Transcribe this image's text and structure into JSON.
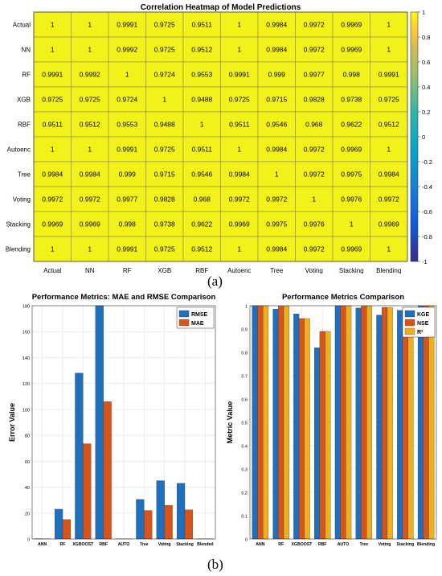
{
  "labels": {
    "a": "(a)",
    "b": "(b)"
  },
  "chart_data": [
    {
      "type": "heatmap",
      "title": "Correlation Heatmap of Model Predictions",
      "rows": [
        "Actual",
        "NN",
        "RF",
        "XGB",
        "RBF",
        "Autoenc",
        "Tree",
        "Voting",
        "Stacking",
        "Blending"
      ],
      "cols": [
        "Actual",
        "NN",
        "RF",
        "XGB",
        "RBF",
        "Autoenc",
        "Tree",
        "Voting",
        "Stacking",
        "Blending"
      ],
      "values": [
        [
          1,
          1,
          0.9991,
          0.9725,
          0.9511,
          1,
          0.9984,
          0.9972,
          0.9969,
          1
        ],
        [
          1,
          1,
          0.9992,
          0.9725,
          0.9512,
          1,
          0.9984,
          0.9972,
          0.9969,
          1
        ],
        [
          0.9991,
          0.9992,
          1,
          0.9724,
          0.9553,
          0.9991,
          0.999,
          0.9977,
          0.998,
          0.9991
        ],
        [
          0.9725,
          0.9725,
          0.9724,
          1,
          0.9488,
          0.9725,
          0.9715,
          0.9828,
          0.9738,
          0.9725
        ],
        [
          0.9511,
          0.9512,
          0.9553,
          0.9488,
          1,
          0.9511,
          0.9546,
          0.968,
          0.9622,
          0.9512
        ],
        [
          1,
          1,
          0.9991,
          0.9725,
          0.9511,
          1,
          0.9984,
          0.9972,
          0.9969,
          1
        ],
        [
          0.9984,
          0.9984,
          0.999,
          0.9715,
          0.9546,
          0.9984,
          1,
          0.9972,
          0.9975,
          0.9984
        ],
        [
          0.9972,
          0.9972,
          0.9977,
          0.9828,
          0.968,
          0.9972,
          0.9972,
          1,
          0.9976,
          0.9972
        ],
        [
          0.9969,
          0.9969,
          0.998,
          0.9738,
          0.9622,
          0.9969,
          0.9975,
          0.9976,
          1,
          0.9969
        ],
        [
          1,
          1,
          0.9991,
          0.9725,
          0.9512,
          1,
          0.9984,
          0.9972,
          0.9969,
          1
        ]
      ],
      "colorbar": {
        "range": [
          -1,
          1
        ],
        "ticks": [
          "1",
          "0.8",
          "0.6",
          "0.4",
          "0.2",
          "0",
          "-0.2",
          "-0.4",
          "-0.6",
          "-0.8",
          "-1"
        ]
      },
      "cell_color": "#f2f21a"
    },
    {
      "type": "bar",
      "title": "Performance Metrics: MAE and RMSE Comparison",
      "ylabel": "Error Value",
      "categories": [
        "ANN",
        "RF",
        "XGBOOST",
        "RBF",
        "AUTO",
        "Tree",
        "Voting",
        "Stacking",
        "Blended"
      ],
      "ylim": [
        0,
        180
      ],
      "yticks": [
        "0",
        "20",
        "40",
        "60",
        "80",
        "100",
        "120",
        "140",
        "160",
        "180"
      ],
      "series": [
        {
          "name": "RMSE",
          "color": "#1f6fbf",
          "values": [
            0.3,
            23,
            128,
            180,
            0.2,
            30.5,
            45,
            43,
            0.2
          ]
        },
        {
          "name": "MAE",
          "color": "#d9541a",
          "values": [
            0.2,
            15,
            73.5,
            106,
            0.1,
            22,
            26,
            22.5,
            0.1
          ]
        }
      ],
      "legend": "top-right",
      "grid": true
    },
    {
      "type": "bar",
      "title": "Performance Metrics Comparison",
      "ylabel": "Metric Value",
      "categories": [
        "ANN",
        "RF",
        "XGBOOST",
        "RBF",
        "AUTO",
        "Tree",
        "Voting",
        "Stacking",
        "Blending"
      ],
      "ylim": [
        0,
        1
      ],
      "yticks": [
        "0",
        "0.1",
        "0.2",
        "0.3",
        "0.4",
        "0.5",
        "0.6",
        "0.7",
        "0.8",
        "0.9",
        "1"
      ],
      "series": [
        {
          "name": "KGE",
          "color": "#1f6fbf",
          "values": [
            1,
            0.985,
            0.965,
            0.82,
            1,
            0.99,
            0.96,
            0.98,
            1
          ]
        },
        {
          "name": "NSE",
          "color": "#d9541a",
          "values": [
            1,
            0.998,
            0.945,
            0.89,
            1,
            0.998,
            0.993,
            0.993,
            1
          ]
        },
        {
          "name": "R²",
          "color": "#edb120",
          "values": [
            1,
            0.998,
            0.945,
            0.89,
            1,
            0.998,
            0.993,
            0.993,
            1
          ]
        }
      ],
      "legend": "top-right",
      "grid": true
    }
  ]
}
